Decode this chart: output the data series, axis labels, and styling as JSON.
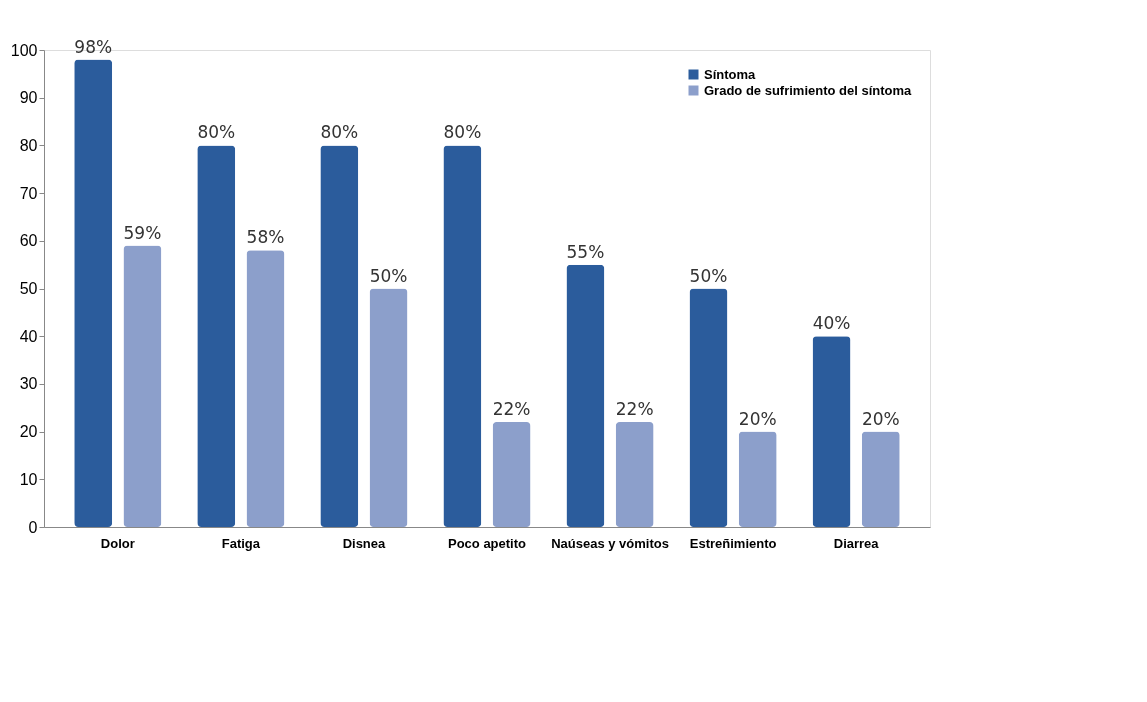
{
  "chart_data": {
    "type": "bar",
    "categories": [
      "Dolor",
      "Fatiga",
      "Disnea",
      "Poco apetito",
      "Naúseas y vómitos",
      "Estreñimiento",
      "Diarrea"
    ],
    "series": [
      {
        "name": "Síntoma",
        "color": "#2b5c9c",
        "values": [
          98,
          80,
          80,
          80,
          55,
          50,
          40
        ],
        "value_labels": [
          "98%",
          "80%",
          "80%",
          "80%",
          "55%",
          "50%",
          "40%"
        ]
      },
      {
        "name": "Grado de sufrimiento del síntoma",
        "color": "#8c9fcb",
        "values": [
          59,
          58,
          50,
          22,
          22,
          20,
          20
        ],
        "value_labels": [
          "59%",
          "58%",
          "50%",
          "22%",
          "22%",
          "20%",
          "20%"
        ]
      }
    ],
    "ylim": [
      0,
      100
    ],
    "yticks": [
      0,
      10,
      20,
      30,
      40,
      50,
      60,
      70,
      80,
      90,
      100
    ],
    "grid": false,
    "legend": "top right"
  }
}
